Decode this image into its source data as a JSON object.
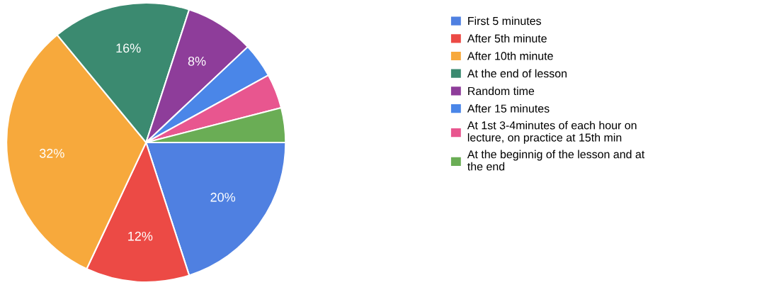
{
  "chart_data": {
    "type": "pie",
    "categories": [
      "First 5 minutes",
      "After 5th minute",
      "After 10th minute",
      "At the end of lesson",
      "Random time",
      "After 15 minutes",
      "At 1st 3-4minutes of each hour on\nlecture, on practice at 15th min",
      "At the beginnig of the lesson and at\nthe end"
    ],
    "values": [
      20,
      12,
      32,
      16,
      8,
      4,
      4,
      4
    ],
    "colors": [
      "#4f80e1",
      "#ec4a45",
      "#f7a93c",
      "#3b8a70",
      "#8e3d9a",
      "#4a86e8",
      "#e8568f",
      "#6aad55"
    ],
    "value_labels": [
      "20%",
      "12%",
      "32%",
      "16%",
      "8%",
      null,
      null,
      null
    ],
    "legend": "right"
  }
}
